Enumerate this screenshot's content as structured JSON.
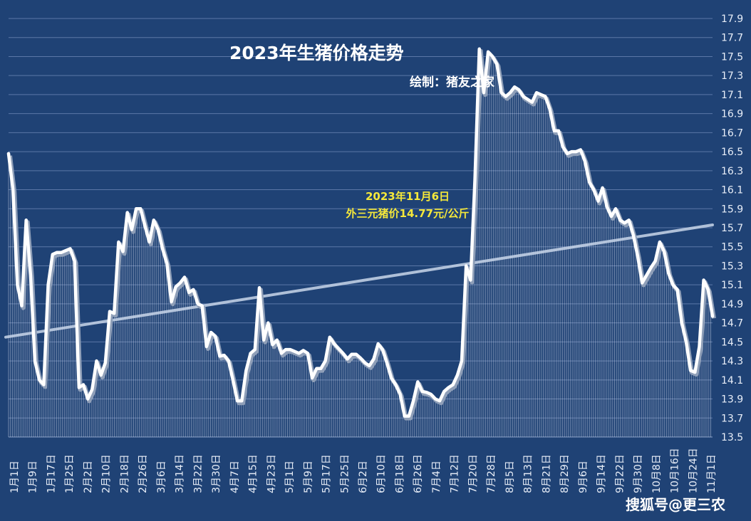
{
  "chart_data": {
    "type": "line",
    "title": "2023年生猪价格走势",
    "subtitle": "绘制：猪友之家",
    "annotation_line1": "2023年11月6日",
    "annotation_line2": "外三元猪价14.77元/公斤",
    "watermark": "搜狐号@更三农",
    "ylim": [
      13.5,
      17.9
    ],
    "yticks": [
      "13.5",
      "13.7",
      "13.9",
      "14.1",
      "14.3",
      "14.5",
      "14.7",
      "14.9",
      "15.1",
      "15.3",
      "15.5",
      "15.7",
      "15.9",
      "16.1",
      "16.3",
      "16.5",
      "16.7",
      "16.9",
      "17.1",
      "17.3",
      "17.5",
      "17.7",
      "17.9"
    ],
    "x_tick_labels": [
      "1月1日",
      "1月9日",
      "1月17日",
      "1月25日",
      "2月2日",
      "2月10日",
      "2月18日",
      "2月26日",
      "3月6日",
      "3月14日",
      "3月22日",
      "3月30日",
      "4月7日",
      "4月15日",
      "4月23日",
      "5月1日",
      "5月9日",
      "5月17日",
      "5月25日",
      "6月2日",
      "6月10日",
      "6月18日",
      "6月26日",
      "7月4日",
      "7月12日",
      "7月20日",
      "7月28日",
      "8月5日",
      "8月13日",
      "8月21日",
      "8月29日",
      "9月6日",
      "9月14日",
      "9月22日",
      "9月30日",
      "10月8日",
      "10月16日",
      "10月24日",
      "11月1日"
    ],
    "series": [
      {
        "values": [
          16.48,
          16.1,
          15.1,
          14.88,
          15.78,
          15.2,
          14.3,
          14.1,
          14.05,
          15.1,
          15.42,
          15.44,
          15.44,
          15.46,
          15.48,
          15.35,
          14.02,
          14.05,
          13.9,
          14.0,
          14.3,
          14.15,
          14.28,
          14.82,
          14.8,
          15.55,
          15.45,
          15.86,
          15.68,
          15.9,
          15.9,
          15.72,
          15.55,
          15.78,
          15.68,
          15.48,
          15.32,
          14.92,
          15.08,
          15.12,
          15.18,
          15.02,
          15.05,
          14.9,
          14.88,
          14.45,
          14.6,
          14.56,
          14.35,
          14.36,
          14.3,
          14.1,
          13.88,
          13.88,
          14.2,
          14.38,
          14.42,
          15.07,
          14.52,
          14.7,
          14.47,
          14.52,
          14.38,
          14.42,
          14.42,
          14.4,
          14.38,
          14.41,
          14.38,
          14.12,
          14.22,
          14.22,
          14.3,
          14.55,
          14.48,
          14.43,
          14.38,
          14.32,
          14.37,
          14.37,
          14.33,
          14.28,
          14.25,
          14.32,
          14.48,
          14.42,
          14.28,
          14.12,
          14.05,
          13.95,
          13.72,
          13.72,
          13.88,
          14.08,
          13.98,
          13.97,
          13.95,
          13.9,
          13.88,
          13.98,
          14.02,
          14.05,
          14.15,
          14.3,
          15.3,
          15.15,
          16.2,
          17.58,
          17.12,
          17.55,
          17.5,
          17.42,
          17.12,
          17.08,
          17.12,
          17.18,
          17.15,
          17.08,
          17.05,
          17.02,
          17.12,
          17.1,
          17.08,
          16.95,
          16.72,
          16.72,
          16.55,
          16.48,
          16.5,
          16.5,
          16.52,
          16.4,
          16.18,
          16.1,
          15.98,
          16.12,
          15.92,
          15.82,
          15.9,
          15.78,
          15.75,
          15.78,
          15.62,
          15.4,
          15.12,
          15.2,
          15.28,
          15.35,
          15.55,
          15.45,
          15.22,
          15.1,
          15.05,
          14.7,
          14.5,
          14.2,
          14.18,
          14.45,
          15.15,
          15.05,
          14.77
        ]
      }
    ],
    "trendline": {
      "start": 14.55,
      "end": 15.73
    },
    "grid": true,
    "line_color": "#ffffff",
    "trend_color": "#c9d6ea",
    "background": "#1f4275"
  }
}
